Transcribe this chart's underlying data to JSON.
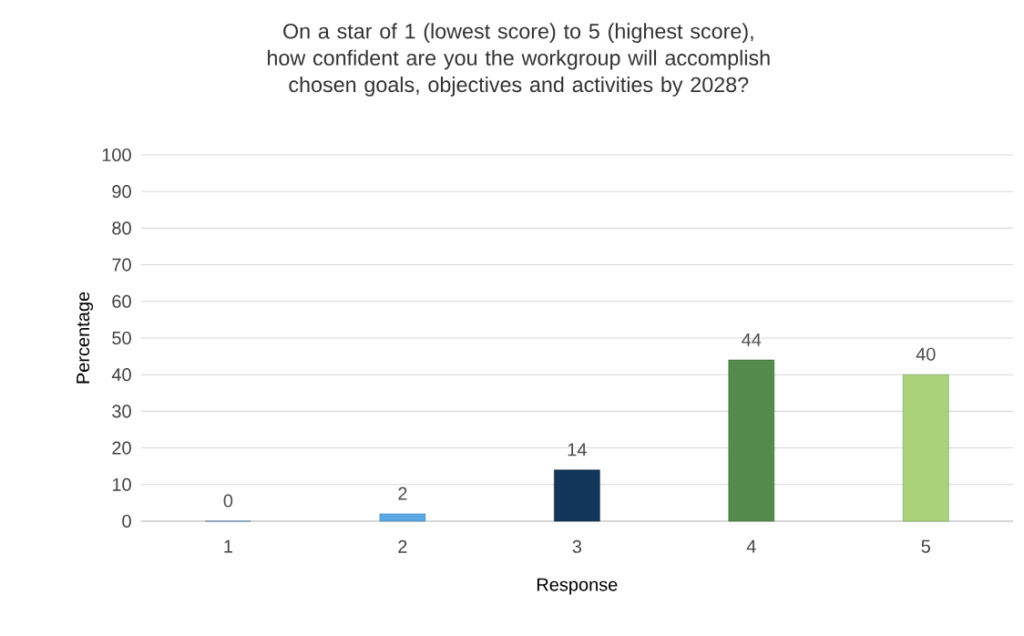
{
  "chart_data": {
    "type": "bar",
    "title": "On a star of 1 (lowest score) to 5 (highest score), how confident are you the workgroup will accomplish chosen goals, objectives and activities by 2028?",
    "xlabel": "Response",
    "ylabel": "Percentage",
    "categories": [
      "1",
      "2",
      "3",
      "4",
      "5"
    ],
    "values": [
      0,
      2,
      14,
      44,
      40
    ],
    "colors": [
      "#5aa9e6",
      "#5aa9e6",
      "#12365a",
      "#548b4a",
      "#a9d27a"
    ],
    "ylim": [
      0,
      100
    ],
    "yticks": [
      0,
      10,
      20,
      30,
      40,
      50,
      60,
      70,
      80,
      90,
      100
    ],
    "grid": "y",
    "data_labels": true
  }
}
